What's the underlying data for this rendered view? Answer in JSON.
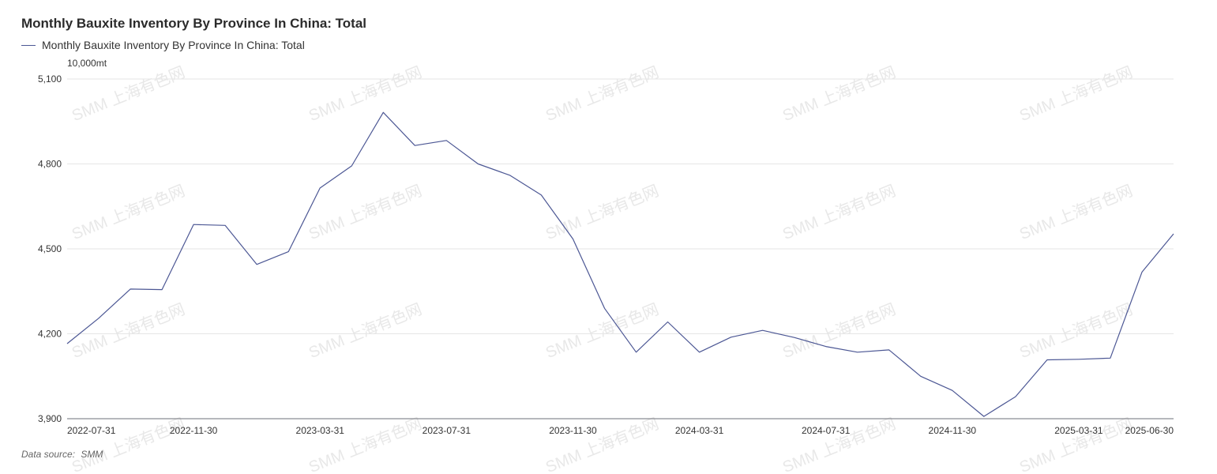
{
  "title": "Monthly Bauxite Inventory By Province In China: Total",
  "unit": "10,000mt",
  "source_label": "Data source:",
  "source_value": "SMM",
  "watermark": "SMM 上海有色网",
  "colors": {
    "series": "#4c5794",
    "grid": "#e6e6e6",
    "axis": "#6e7079",
    "text": "#333333"
  },
  "chart_data": {
    "type": "line",
    "title": "Monthly Bauxite Inventory By Province In China: Total",
    "ylabel": "10,000mt",
    "xlabel": "",
    "ylim": [
      3900,
      5100
    ],
    "yticks": [
      3900,
      4200,
      4500,
      4800,
      5100
    ],
    "ytick_labels": [
      "3,900",
      "4,200",
      "4,500",
      "4,800",
      "5,100"
    ],
    "x": [
      "2022-07-31",
      "2022-08-31",
      "2022-09-30",
      "2022-10-31",
      "2022-11-30",
      "2022-12-31",
      "2023-01-31",
      "2023-02-28",
      "2023-03-31",
      "2023-04-30",
      "2023-05-31",
      "2023-06-30",
      "2023-07-31",
      "2023-08-31",
      "2023-09-30",
      "2023-10-31",
      "2023-11-30",
      "2023-12-31",
      "2024-01-31",
      "2024-02-29",
      "2024-03-31",
      "2024-04-30",
      "2024-05-31",
      "2024-06-30",
      "2024-07-31",
      "2024-08-31",
      "2024-09-30",
      "2024-10-31",
      "2024-11-30",
      "2024-12-31",
      "2025-01-31",
      "2025-02-28",
      "2025-03-31",
      "2025-04-30",
      "2025-05-31",
      "2025-06-30"
    ],
    "xtick_labels": [
      "2022-07-31",
      "2022-11-30",
      "2023-03-31",
      "2023-07-31",
      "2023-11-30",
      "2024-03-31",
      "2024-07-31",
      "2024-11-30",
      "2025-03-31",
      "2025-06-30"
    ],
    "series": [
      {
        "name": "Monthly Bauxite Inventory By Province In China: Total",
        "values": [
          4165,
          4255,
          4358,
          4356,
          4586,
          4583,
          4445,
          4490,
          4715,
          4793,
          4982,
          4865,
          4883,
          4800,
          4760,
          4690,
          4535,
          4290,
          4135,
          4242,
          4135,
          4188,
          4212,
          4187,
          4155,
          4135,
          4143,
          4050,
          4000,
          3908,
          3978,
          4108,
          4110,
          4114,
          4418,
          4553
        ]
      }
    ],
    "grid": true,
    "legend": "top-left"
  }
}
